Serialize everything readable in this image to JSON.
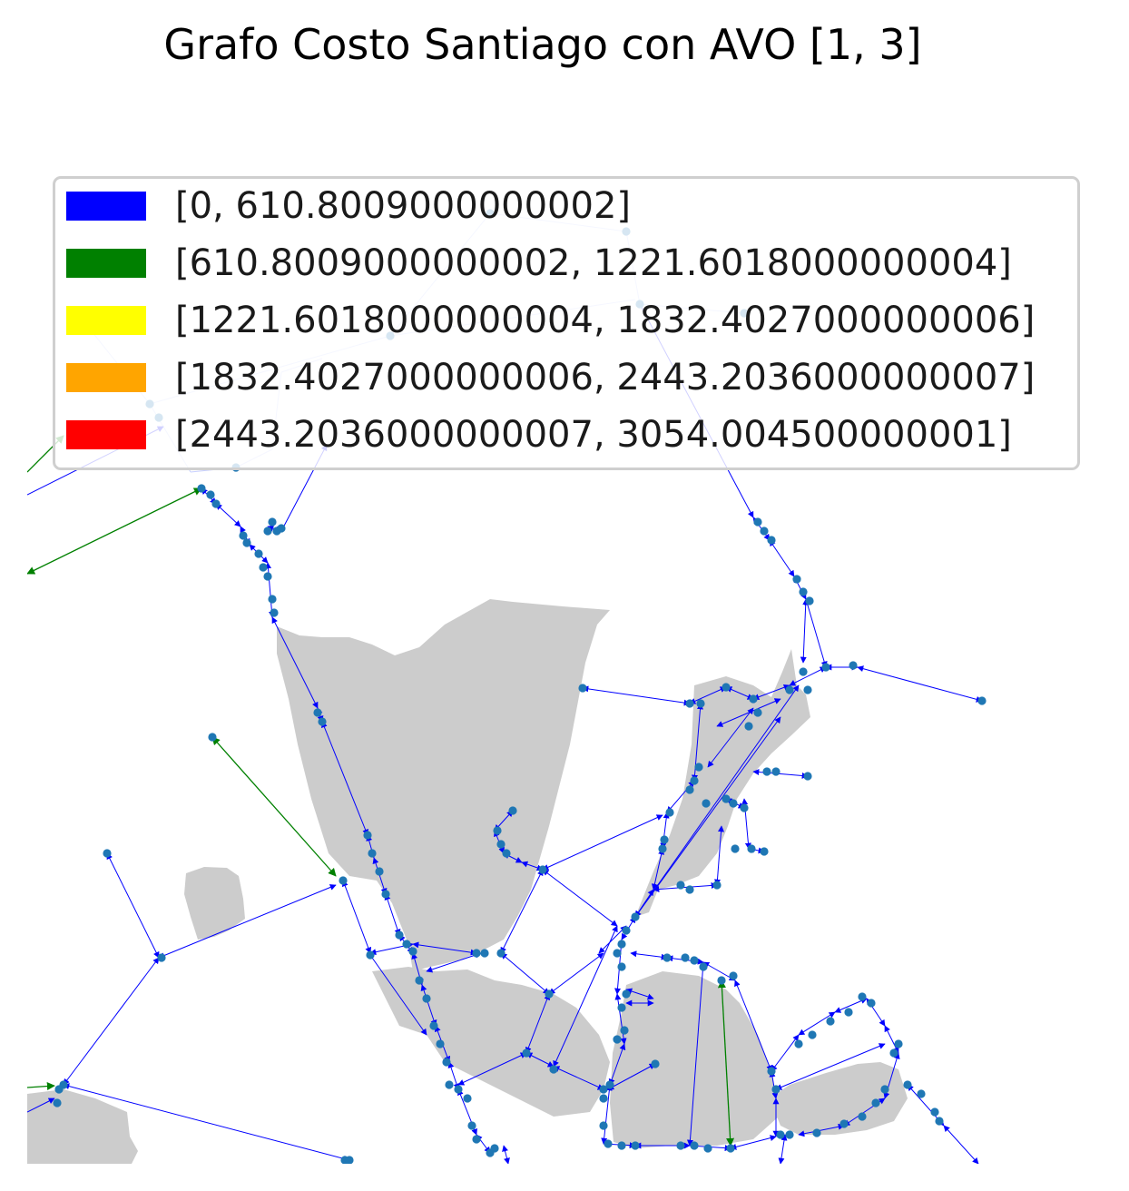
{
  "chart_data": {
    "type": "network-map",
    "title": "Grafo Costo Santiago con AVO [1, 3]",
    "legend": [
      {
        "label": "[0, 610.8009000000002]",
        "color": "#0000ff"
      },
      {
        "label": "[610.8009000000002, 1221.6018000000004]",
        "color": "#008000"
      },
      {
        "label": "[1221.6018000000004, 1832.4027000000006]",
        "color": "#ffff00"
      },
      {
        "label": "[1832.4027000000006, 2443.2036000000007]",
        "color": "#ffa500"
      },
      {
        "label": "[2443.2036000000007, 3054.004500000001]",
        "color": "#ff0000"
      }
    ],
    "node_color": "#1f77b4",
    "land_color": "#cccccc"
  }
}
